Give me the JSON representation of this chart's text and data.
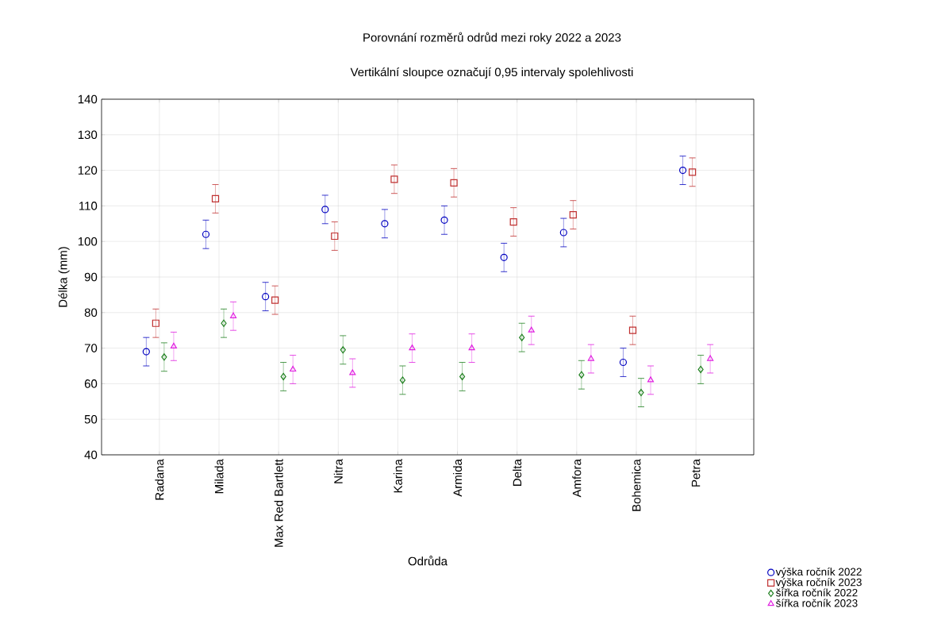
{
  "chart_data": {
    "type": "scatter",
    "title": "Porovnání rozměrů odrůd mezi roky 2022 a 2023",
    "subtitle": "Vertikální sloupce označují 0,95 intervaly spolehlivosti",
    "xlabel": "Odrůda",
    "ylabel": "Délka (mm)",
    "categories": [
      "Radana",
      "Milada",
      "Max Red Bartlett",
      "Nitra",
      "Karina",
      "Armida",
      "Delta",
      "Amfora",
      "Bohemica",
      "Petra"
    ],
    "ylim": [
      40,
      140
    ],
    "yticks": [
      40,
      50,
      60,
      70,
      80,
      90,
      100,
      110,
      120,
      130,
      140
    ],
    "grid": true,
    "legend": "bottom right",
    "series": [
      {
        "name": "výška ročník 2022",
        "color": "#0000c0",
        "marker": "circle",
        "values": [
          69,
          102,
          84.5,
          109,
          105,
          106,
          95.5,
          102.5,
          66,
          120
        ],
        "errors": [
          4,
          4,
          4,
          4,
          4,
          4,
          4,
          4,
          4,
          4
        ]
      },
      {
        "name": "výška ročník 2023",
        "color": "#c03030",
        "marker": "square",
        "values": [
          77,
          112,
          83.5,
          101.5,
          117.5,
          116.5,
          105.5,
          107.5,
          75,
          119.5
        ],
        "errors": [
          4,
          4,
          4,
          4,
          4,
          4,
          4,
          4,
          4,
          4
        ]
      },
      {
        "name": "šířka ročník 2022",
        "color": "#208020",
        "marker": "diamond",
        "values": [
          67.5,
          77,
          62,
          69.5,
          61,
          62,
          73,
          62.5,
          57.5,
          64
        ],
        "errors": [
          4,
          4,
          4,
          4,
          4,
          4,
          4,
          4,
          4,
          4
        ]
      },
      {
        "name": "šířka ročník 2023",
        "color": "#e020e0",
        "marker": "triangle",
        "values": [
          70.5,
          79,
          64,
          63,
          70,
          70,
          75,
          67,
          61,
          67
        ],
        "errors": [
          4,
          4,
          4,
          4,
          4,
          4,
          4,
          4,
          4,
          4
        ]
      }
    ]
  }
}
